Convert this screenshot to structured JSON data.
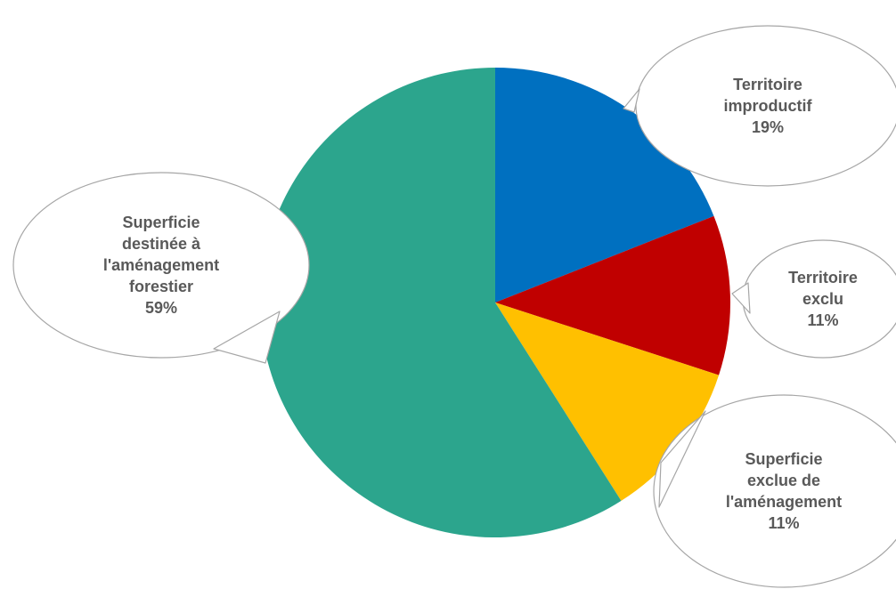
{
  "chart_data": {
    "type": "pie",
    "title": "",
    "slices": [
      {
        "label_lines": [
          "Territoire",
          "improductif"
        ],
        "value": 19,
        "value_label": "19%",
        "color": "#0070C0"
      },
      {
        "label_lines": [
          "Territoire",
          "exclu"
        ],
        "value": 11,
        "value_label": "11%",
        "color": "#C00000"
      },
      {
        "label_lines": [
          "Superficie",
          "exclue de",
          "l'aménagement"
        ],
        "value": 11,
        "value_label": "11%",
        "color": "#FFC000"
      },
      {
        "label_lines": [
          "Superficie",
          "destinée à",
          "l'aménagement",
          "forestier"
        ],
        "value": 59,
        "value_label": "59%",
        "color": "#2CA58D"
      }
    ],
    "start_angle_deg": 0,
    "direction": "clockwise",
    "data_labels": "callouts",
    "legend": "none"
  }
}
